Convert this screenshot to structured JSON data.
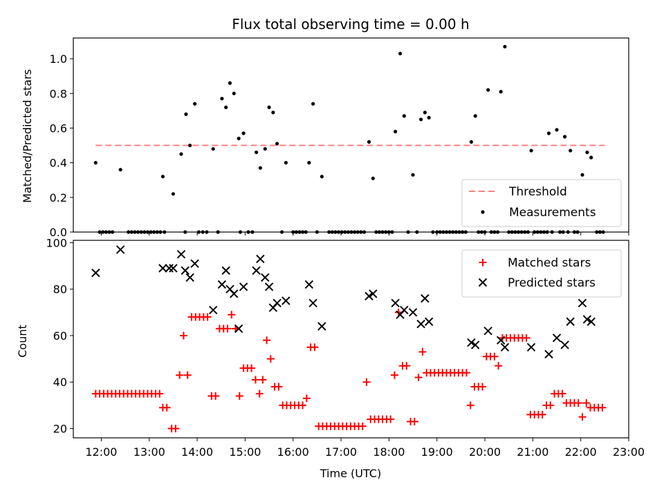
{
  "chart_data": [
    {
      "type": "scatter",
      "title": "Flux total observing time = 0.00 h",
      "ylabel": "Matched/Predicted stars",
      "ylim": [
        0,
        1.12
      ],
      "yticks": [
        0.0,
        0.2,
        0.4,
        0.6,
        0.8,
        1.0
      ],
      "ytick_labels": [
        "0.0",
        "0.2",
        "0.4",
        "0.6",
        "0.8",
        "1.0"
      ],
      "legend": {
        "placement": "lower-right",
        "entries": [
          "Threshold",
          "Measurements"
        ]
      },
      "threshold": {
        "name": "Threshold",
        "y": 0.5,
        "x_range": [
          "11:53",
          "22:30"
        ],
        "color": "#ff7f7f"
      },
      "series": [
        {
          "name": "Measurements",
          "color": "#000000",
          "marker": "dot",
          "points": [
            [
              "11:53",
              0.4
            ],
            [
              "12:24",
              0.36
            ],
            [
              "13:17",
              0.32
            ],
            [
              "13:30",
              0.22
            ],
            [
              "13:40",
              0.45
            ],
            [
              "13:46",
              0.68
            ],
            [
              "13:51",
              0.5
            ],
            [
              "13:57",
              0.74
            ],
            [
              "14:20",
              0.48
            ],
            [
              "14:31",
              0.77
            ],
            [
              "14:36",
              0.72
            ],
            [
              "14:41",
              0.86
            ],
            [
              "14:46",
              0.8
            ],
            [
              "14:52",
              0.54
            ],
            [
              "14:58",
              0.57
            ],
            [
              "15:14",
              0.46
            ],
            [
              "15:19",
              0.37
            ],
            [
              "15:25",
              0.48
            ],
            [
              "15:30",
              0.72
            ],
            [
              "15:35",
              0.69
            ],
            [
              "15:40",
              0.51
            ],
            [
              "15:51",
              0.4
            ],
            [
              "16:20",
              0.4
            ],
            [
              "16:25",
              0.74
            ],
            [
              "16:36",
              0.32
            ],
            [
              "17:35",
              0.52
            ],
            [
              "17:40",
              0.31
            ],
            [
              "18:08",
              0.58
            ],
            [
              "18:14",
              1.03
            ],
            [
              "18:19",
              0.67
            ],
            [
              "18:30",
              0.33
            ],
            [
              "18:40",
              0.65
            ],
            [
              "18:45",
              0.69
            ],
            [
              "18:50",
              0.66
            ],
            [
              "19:43",
              0.52
            ],
            [
              "19:48",
              0.67
            ],
            [
              "20:04",
              0.82
            ],
            [
              "20:20",
              0.81
            ],
            [
              "20:25",
              1.07
            ],
            [
              "20:58",
              0.47
            ],
            [
              "21:20",
              0.57
            ],
            [
              "21:30",
              0.59
            ],
            [
              "21:40",
              0.55
            ],
            [
              "21:47",
              0.47
            ],
            [
              "22:02",
              0.33
            ],
            [
              "22:08",
              0.46
            ],
            [
              "22:13",
              0.43
            ]
          ],
          "zero_points": [
            "11:58",
            "12:02",
            "12:06",
            "12:10",
            "12:14",
            "12:34",
            "12:38",
            "12:42",
            "12:46",
            "12:50",
            "12:54",
            "12:58",
            "13:02",
            "13:06",
            "13:10",
            "13:14",
            "13:19",
            "13:45",
            "14:02",
            "14:07",
            "14:12",
            "14:26",
            "14:54",
            "15:04",
            "15:09",
            "15:46",
            "16:00",
            "16:04",
            "16:08",
            "16:12",
            "16:16",
            "16:30",
            "16:45",
            "16:49",
            "16:53",
            "16:57",
            "17:01",
            "17:05",
            "17:09",
            "17:13",
            "17:17",
            "17:21",
            "17:25",
            "17:29",
            "17:44",
            "17:48",
            "17:52",
            "17:56",
            "18:00",
            "18:04",
            "18:24",
            "18:35",
            "18:55",
            "19:00",
            "19:04",
            "19:08",
            "19:12",
            "19:16",
            "19:20",
            "19:24",
            "19:28",
            "19:32",
            "19:36",
            "19:52",
            "19:56",
            "20:00",
            "20:08",
            "20:12",
            "20:16",
            "20:30",
            "20:34",
            "20:38",
            "20:42",
            "20:46",
            "20:50",
            "20:54",
            "21:02",
            "21:06",
            "21:10",
            "21:14",
            "21:18",
            "21:24",
            "21:34",
            "21:38",
            "21:44",
            "21:52",
            "21:56",
            "22:20",
            "22:24",
            "22:28"
          ]
        }
      ]
    },
    {
      "type": "scatter",
      "xlabel": "Time (UTC)",
      "ylabel": "Count",
      "ylim": [
        16,
        101
      ],
      "yticks": [
        20,
        40,
        60,
        80,
        100
      ],
      "ytick_labels": [
        "20",
        "40",
        "60",
        "80",
        "100"
      ],
      "xlim": [
        "11:25",
        "23:00"
      ],
      "xticks": [
        "12:00",
        "13:00",
        "14:00",
        "15:00",
        "16:00",
        "17:00",
        "18:00",
        "19:00",
        "20:00",
        "21:00",
        "22:00",
        "23:00"
      ],
      "xtick_labels": [
        "12:00",
        "13:00",
        "14:00",
        "15:00",
        "16:00",
        "17:00",
        "18:00",
        "19:00",
        "20:00",
        "21:00",
        "22:00",
        "23:00"
      ],
      "legend": {
        "placement": "upper-right",
        "entries": [
          "Matched stars",
          "Predicted stars"
        ]
      },
      "series": [
        {
          "name": "Matched stars",
          "color": "#ff0000",
          "marker": "plus",
          "points": [
            [
              "11:53",
              35
            ],
            [
              "11:58",
              35
            ],
            [
              "12:03",
              35
            ],
            [
              "12:08",
              35
            ],
            [
              "12:13",
              35
            ],
            [
              "12:18",
              35
            ],
            [
              "12:23",
              35
            ],
            [
              "12:28",
              35
            ],
            [
              "12:33",
              35
            ],
            [
              "12:38",
              35
            ],
            [
              "12:43",
              35
            ],
            [
              "12:48",
              35
            ],
            [
              "12:53",
              35
            ],
            [
              "12:58",
              35
            ],
            [
              "13:03",
              35
            ],
            [
              "13:08",
              35
            ],
            [
              "13:13",
              35
            ],
            [
              "13:17",
              29
            ],
            [
              "13:22",
              29
            ],
            [
              "13:28",
              20
            ],
            [
              "13:33",
              20
            ],
            [
              "13:38",
              43
            ],
            [
              "13:43",
              60
            ],
            [
              "13:48",
              43
            ],
            [
              "13:53",
              68
            ],
            [
              "13:58",
              68
            ],
            [
              "14:03",
              68
            ],
            [
              "14:08",
              68
            ],
            [
              "14:13",
              68
            ],
            [
              "14:18",
              34
            ],
            [
              "14:23",
              34
            ],
            [
              "14:28",
              63
            ],
            [
              "14:33",
              63
            ],
            [
              "14:38",
              63
            ],
            [
              "14:43",
              69
            ],
            [
              "14:48",
              63
            ],
            [
              "14:53",
              34
            ],
            [
              "14:58",
              46
            ],
            [
              "15:03",
              46
            ],
            [
              "15:08",
              46
            ],
            [
              "15:13",
              41
            ],
            [
              "15:18",
              35
            ],
            [
              "15:22",
              41
            ],
            [
              "15:27",
              58
            ],
            [
              "15:32",
              50
            ],
            [
              "15:37",
              38
            ],
            [
              "15:42",
              38
            ],
            [
              "15:47",
              30
            ],
            [
              "15:52",
              30
            ],
            [
              "15:57",
              30
            ],
            [
              "16:02",
              30
            ],
            [
              "16:07",
              30
            ],
            [
              "16:12",
              30
            ],
            [
              "16:17",
              33
            ],
            [
              "16:22",
              55
            ],
            [
              "16:27",
              55
            ],
            [
              "16:32",
              21
            ],
            [
              "16:37",
              21
            ],
            [
              "16:42",
              21
            ],
            [
              "16:47",
              21
            ],
            [
              "16:52",
              21
            ],
            [
              "16:57",
              21
            ],
            [
              "17:02",
              21
            ],
            [
              "17:07",
              21
            ],
            [
              "17:12",
              21
            ],
            [
              "17:17",
              21
            ],
            [
              "17:22",
              21
            ],
            [
              "17:27",
              21
            ],
            [
              "17:32",
              40
            ],
            [
              "17:37",
              24
            ],
            [
              "17:42",
              24
            ],
            [
              "17:47",
              24
            ],
            [
              "17:52",
              24
            ],
            [
              "17:57",
              24
            ],
            [
              "18:02",
              24
            ],
            [
              "18:07",
              43
            ],
            [
              "18:12",
              70
            ],
            [
              "18:17",
              47
            ],
            [
              "18:22",
              47
            ],
            [
              "18:27",
              23
            ],
            [
              "18:32",
              23
            ],
            [
              "18:37",
              42
            ],
            [
              "18:42",
              53
            ],
            [
              "18:47",
              44
            ],
            [
              "18:52",
              44
            ],
            [
              "18:57",
              44
            ],
            [
              "19:02",
              44
            ],
            [
              "19:07",
              44
            ],
            [
              "19:12",
              44
            ],
            [
              "19:17",
              44
            ],
            [
              "19:22",
              44
            ],
            [
              "19:27",
              44
            ],
            [
              "19:32",
              44
            ],
            [
              "19:37",
              44
            ],
            [
              "19:42",
              30
            ],
            [
              "19:47",
              38
            ],
            [
              "19:52",
              38
            ],
            [
              "19:57",
              38
            ],
            [
              "20:02",
              51
            ],
            [
              "20:07",
              51
            ],
            [
              "20:12",
              51
            ],
            [
              "20:17",
              47
            ],
            [
              "20:22",
              59
            ],
            [
              "20:27",
              59
            ],
            [
              "20:32",
              59
            ],
            [
              "20:37",
              59
            ],
            [
              "20:42",
              59
            ],
            [
              "20:47",
              59
            ],
            [
              "20:52",
              59
            ],
            [
              "20:57",
              26
            ],
            [
              "21:02",
              26
            ],
            [
              "21:07",
              26
            ],
            [
              "21:12",
              26
            ],
            [
              "21:17",
              30
            ],
            [
              "21:22",
              30
            ],
            [
              "21:27",
              35
            ],
            [
              "21:32",
              35
            ],
            [
              "21:37",
              35
            ],
            [
              "21:42",
              31
            ],
            [
              "21:47",
              31
            ],
            [
              "21:52",
              31
            ],
            [
              "21:57",
              31
            ],
            [
              "22:02",
              25
            ],
            [
              "22:07",
              31
            ],
            [
              "22:12",
              29
            ],
            [
              "22:17",
              29
            ],
            [
              "22:22",
              29
            ],
            [
              "22:27",
              29
            ]
          ]
        },
        {
          "name": "Predicted stars",
          "color": "#000000",
          "marker": "x",
          "points": [
            [
              "11:53",
              87
            ],
            [
              "12:24",
              97
            ],
            [
              "13:17",
              89
            ],
            [
              "13:25",
              89
            ],
            [
              "13:30",
              89
            ],
            [
              "13:40",
              95
            ],
            [
              "13:45",
              88
            ],
            [
              "13:51",
              85
            ],
            [
              "13:57",
              91
            ],
            [
              "14:20",
              71
            ],
            [
              "14:31",
              82
            ],
            [
              "14:36",
              88
            ],
            [
              "14:41",
              80
            ],
            [
              "14:46",
              78
            ],
            [
              "14:52",
              63
            ],
            [
              "14:58",
              81
            ],
            [
              "15:14",
              88
            ],
            [
              "15:19",
              93
            ],
            [
              "15:25",
              85
            ],
            [
              "15:30",
              81
            ],
            [
              "15:35",
              72
            ],
            [
              "15:40",
              74
            ],
            [
              "15:51",
              75
            ],
            [
              "16:20",
              82
            ],
            [
              "16:25",
              74
            ],
            [
              "16:36",
              64
            ],
            [
              "17:35",
              77
            ],
            [
              "17:40",
              78
            ],
            [
              "18:08",
              74
            ],
            [
              "18:14",
              69
            ],
            [
              "18:19",
              71
            ],
            [
              "18:30",
              70
            ],
            [
              "18:40",
              65
            ],
            [
              "18:45",
              76
            ],
            [
              "18:50",
              66
            ],
            [
              "19:43",
              57
            ],
            [
              "19:48",
              56
            ],
            [
              "20:04",
              62
            ],
            [
              "20:20",
              58
            ],
            [
              "20:25",
              55
            ],
            [
              "20:58",
              55
            ],
            [
              "21:20",
              52
            ],
            [
              "21:30",
              59
            ],
            [
              "21:40",
              56
            ],
            [
              "21:47",
              66
            ],
            [
              "22:02",
              74
            ],
            [
              "22:08",
              67
            ],
            [
              "22:13",
              66
            ]
          ]
        }
      ]
    }
  ]
}
